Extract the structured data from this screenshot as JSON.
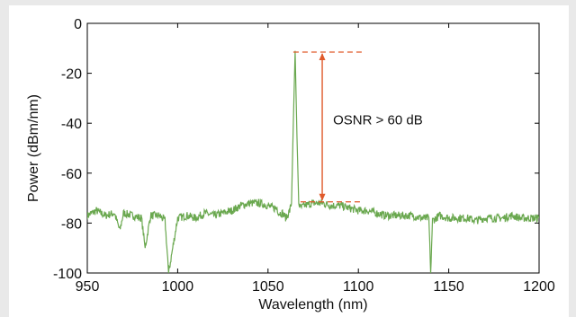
{
  "chart_data": {
    "type": "line",
    "title": "",
    "xlabel": "Wavelength (nm)",
    "ylabel": "Power (dBm/nm)",
    "xlim": [
      950,
      1200
    ],
    "ylim": [
      -100,
      0
    ],
    "xticks": [
      950,
      1000,
      1050,
      1100,
      1150,
      1200
    ],
    "yticks": [
      0,
      -20,
      -40,
      -60,
      -80,
      -100
    ],
    "grid": false,
    "legend": "none",
    "series": [
      {
        "color": "#6aa84f",
        "x": [
          950,
          955,
          960,
          965,
          968,
          970,
          975,
          980,
          982,
          985,
          990,
          993,
          995,
          1000,
          1005,
          1010,
          1015,
          1020,
          1025,
          1030,
          1035,
          1040,
          1045,
          1050,
          1053,
          1055,
          1056,
          1058,
          1060,
          1062,
          1063,
          1064,
          1065,
          1066,
          1067,
          1068,
          1070,
          1075,
          1080,
          1085,
          1090,
          1095,
          1100,
          1105,
          1110,
          1115,
          1120,
          1125,
          1130,
          1135,
          1139,
          1140,
          1141,
          1145,
          1150,
          1155,
          1160,
          1165,
          1170,
          1175,
          1180,
          1185,
          1190,
          1195,
          1200
        ],
        "values": [
          -77,
          -75,
          -77,
          -76,
          -83,
          -76,
          -77,
          -78,
          -90,
          -77,
          -77,
          -79,
          -100,
          -78,
          -77,
          -78,
          -76,
          -77,
          -76,
          -75,
          -73,
          -72,
          -72,
          -73,
          -74,
          -74,
          -76,
          -76,
          -78,
          -75,
          -72,
          -40,
          -11,
          -45,
          -72,
          -74,
          -73,
          -72,
          -72,
          -73,
          -73,
          -74,
          -75,
          -75,
          -76,
          -77,
          -77,
          -77,
          -77,
          -78,
          -78,
          -100,
          -79,
          -77,
          -78,
          -78,
          -78,
          -79,
          -78,
          -78,
          -78,
          -77,
          -78,
          -78,
          -78
        ]
      }
    ],
    "annotations": [
      {
        "text": "OSNR > 60 dB",
        "arrow_from": [
          1080,
          -11.5
        ],
        "arrow_to": [
          1080,
          -71.5
        ],
        "color": "#e05a2b"
      }
    ]
  }
}
